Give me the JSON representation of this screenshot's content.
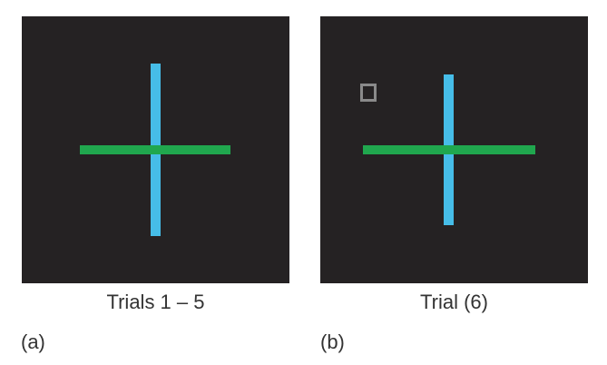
{
  "panels": [
    {
      "label": "(a)",
      "caption": "Trials 1 – 5",
      "background_color": "#252223",
      "vertical_line_color": "#46bde8",
      "horizontal_line_color": "#20a74e"
    },
    {
      "label": "(b)",
      "caption": "Trial (6)",
      "background_color": "#252223",
      "vertical_line_color": "#46bde8",
      "horizontal_line_color": "#20a74e",
      "cue_square_color": "#8a8a8a"
    }
  ]
}
